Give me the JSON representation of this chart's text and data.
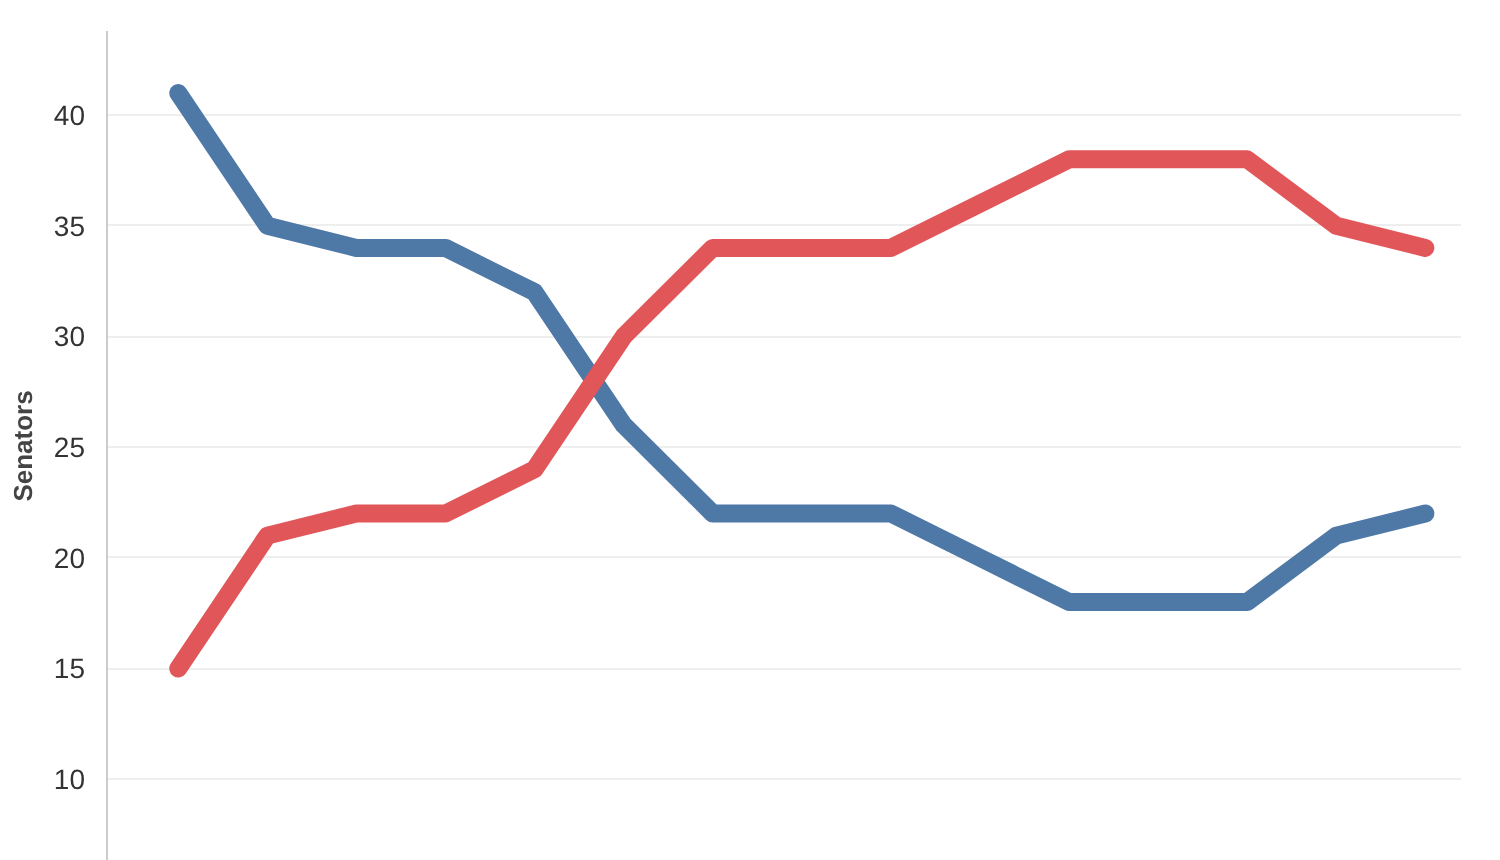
{
  "chart_data": {
    "type": "line",
    "ylabel": "Senators",
    "categories": [
      null,
      null,
      null,
      null,
      null,
      null,
      null,
      null,
      null,
      null,
      null,
      null,
      null,
      null,
      null
    ],
    "series": [
      {
        "color": "#4e79a7",
        "values": [
          41,
          35,
          34,
          34,
          32,
          26,
          22,
          22,
          22,
          20,
          18,
          18,
          18,
          21,
          22
        ]
      },
      {
        "color": "#e15759",
        "values": [
          15,
          21,
          22,
          22,
          24,
          30,
          34,
          34,
          34,
          36,
          38,
          38,
          38,
          35,
          34
        ]
      }
    ],
    "ylim": [
      6.3,
      43.8
    ],
    "yticks": [
      10,
      15,
      20,
      25,
      30,
      35,
      40
    ],
    "grid": "y",
    "tick_labels": "y"
  }
}
